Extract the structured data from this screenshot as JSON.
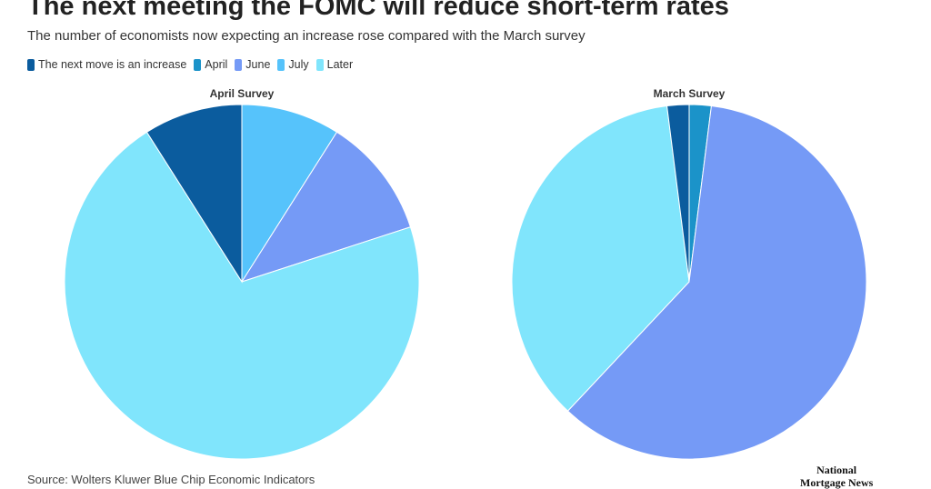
{
  "title": "The next meeting the FOMC will reduce short-term rates",
  "subtitle": "The number of economists now expecting an increase rose compared with the March survey",
  "source": "Source: Wolters Kluwer Blue Chip Economic Indicators",
  "logo": {
    "line1": "National",
    "line2": "Mortgage News"
  },
  "chart_data": [
    {
      "type": "pie",
      "title": "April Survey",
      "unit": "percent",
      "slices": [
        {
          "label": "April",
          "value": 0,
          "color": "#1b93c9"
        },
        {
          "label": "July",
          "value": 9,
          "color": "#56c3fb"
        },
        {
          "label": "June",
          "value": 11,
          "color": "#759af6"
        },
        {
          "label": "Later",
          "value": 71,
          "color": "#80e5fc"
        },
        {
          "label": "The next move is an increase",
          "value": 9,
          "color": "#0b5c9e"
        }
      ]
    },
    {
      "type": "pie",
      "title": "March Survey",
      "unit": "percent",
      "slices": [
        {
          "label": "April",
          "value": 2,
          "color": "#1b93c9"
        },
        {
          "label": "June",
          "value": 60,
          "color": "#759af6"
        },
        {
          "label": "July",
          "value": 0,
          "color": "#56c3fb"
        },
        {
          "label": "Later",
          "value": 36,
          "color": "#80e5fc"
        },
        {
          "label": "The next move is an increase",
          "value": 2,
          "color": "#0b5c9e"
        }
      ]
    }
  ],
  "legend": [
    {
      "label": "The next move is an increase",
      "color": "#0b5c9e"
    },
    {
      "label": "April",
      "color": "#1b93c9"
    },
    {
      "label": "June",
      "color": "#759af6"
    },
    {
      "label": "July",
      "color": "#56c3fb"
    },
    {
      "label": "Later",
      "color": "#80e5fc"
    }
  ],
  "legend_placement": "top-left"
}
